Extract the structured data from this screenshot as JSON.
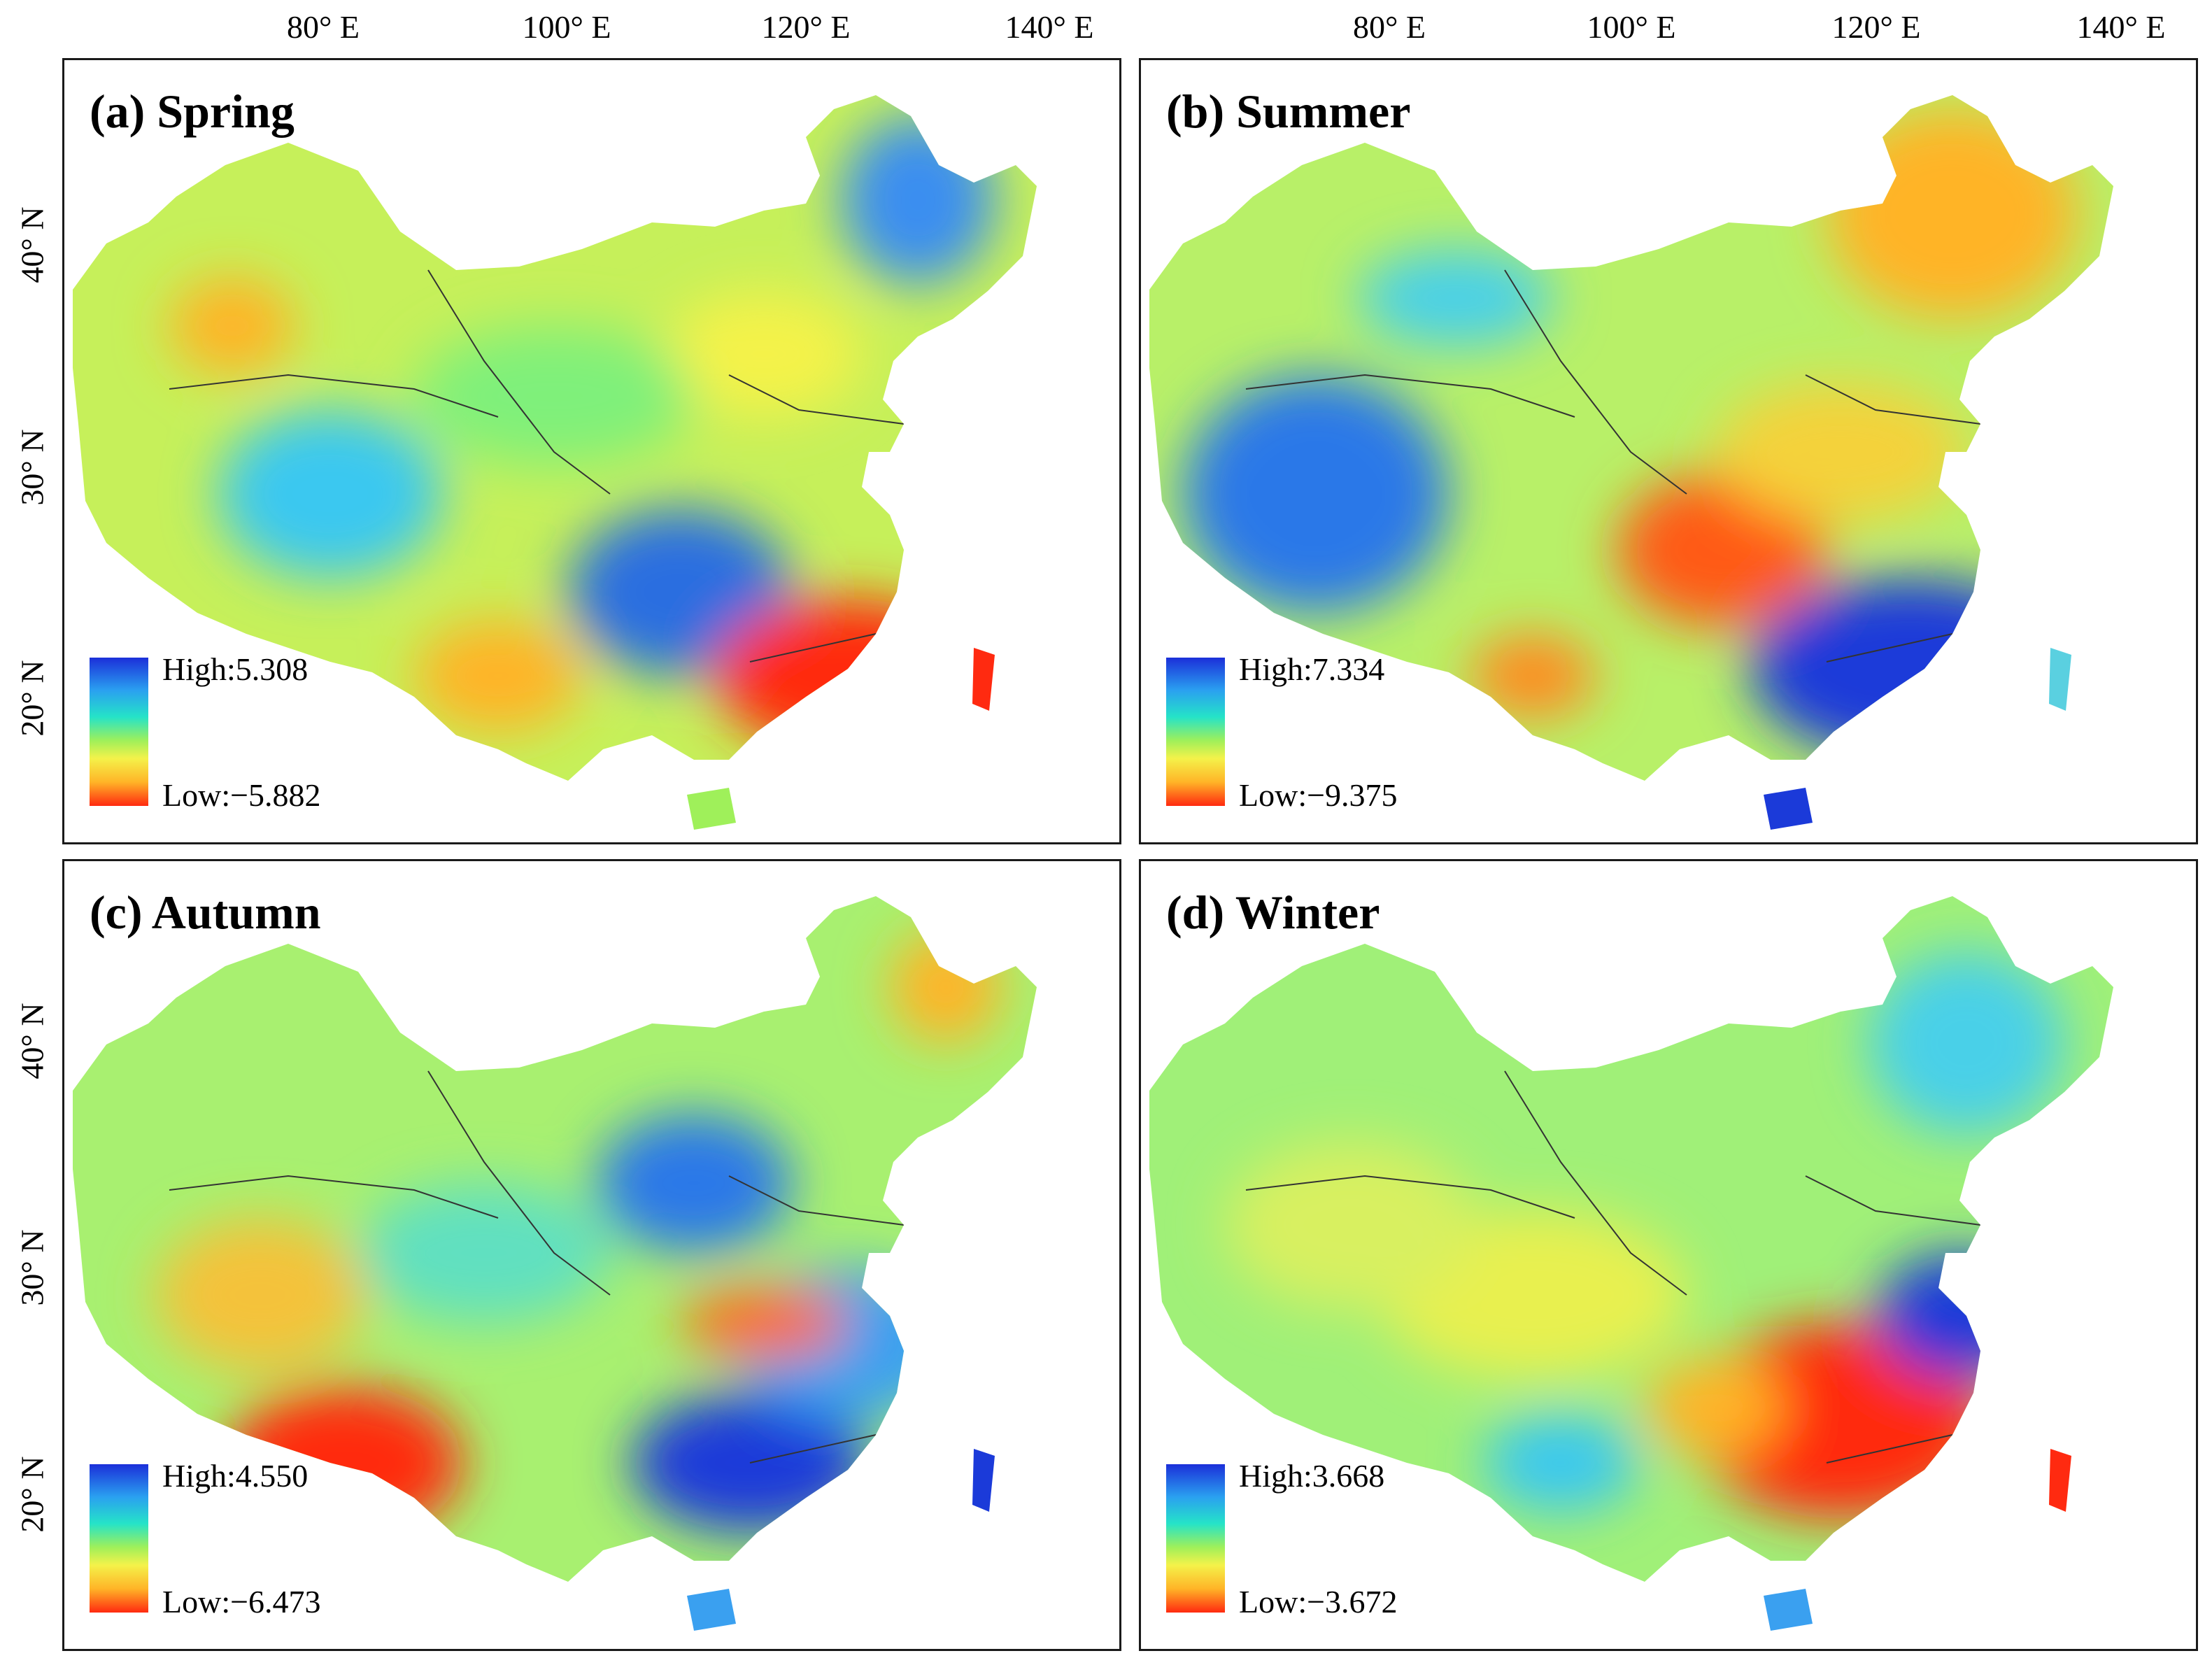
{
  "x_ticks": [
    "80° E",
    "100° E",
    "120° E",
    "140° E"
  ],
  "y_ticks": [
    "40° N",
    "30° N",
    "20° N"
  ],
  "panels": [
    {
      "title": "(a) Spring",
      "legend": {
        "high": "High:5.308",
        "low": "Low:−5.882"
      }
    },
    {
      "title": "(b) Summer",
      "legend": {
        "high": "High:7.334",
        "low": "Low:−9.375"
      }
    },
    {
      "title": "(c) Autumn",
      "legend": {
        "high": "High:4.550",
        "low": "Low:−6.473"
      }
    },
    {
      "title": "(d) Winter",
      "legend": {
        "high": "High:3.668",
        "low": "Low:−3.672"
      }
    }
  ],
  "colors": {
    "high": "#1b2fd9",
    "mid": "#25e3c8",
    "low": "#ff2a10"
  }
}
